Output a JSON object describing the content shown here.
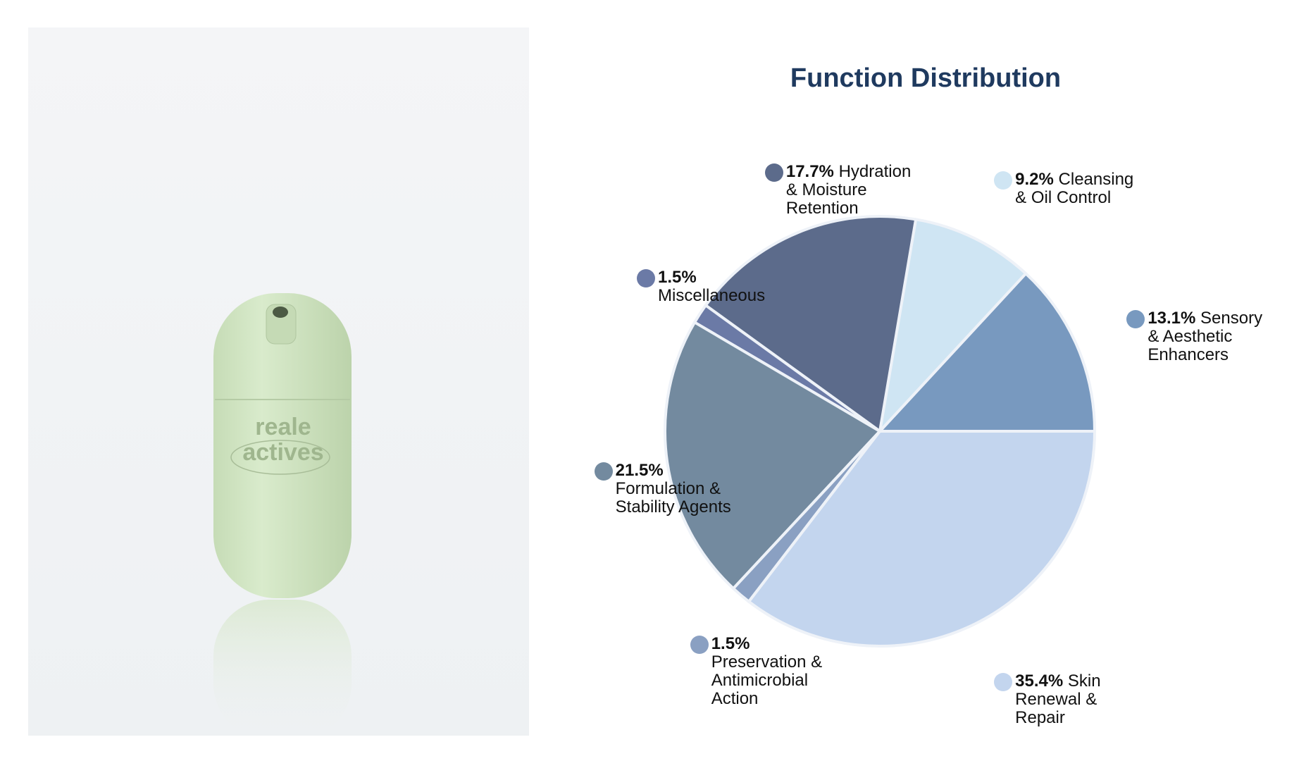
{
  "product_image": {
    "brand_line1": "reale",
    "brand_line2": "actives"
  },
  "chart_data": {
    "type": "pie",
    "title": "Function Distribution",
    "categories": [
      "Sensory & Aesthetic Enhancers",
      "Cleansing & Oil Control",
      "Hydration & Moisture Retention",
      "Miscellaneous",
      "Formulation & Stability Agents",
      "Preservation & Antimicrobial Action",
      "Skin Renewal & Repair"
    ],
    "values": [
      13.1,
      9.2,
      17.7,
      1.5,
      21.5,
      1.5,
      35.4
    ],
    "value_labels": [
      "13.1%",
      "9.2%",
      "17.7%",
      "1.5%",
      "21.5%",
      "1.5%",
      "35.4%"
    ],
    "colors": [
      "#7899bf",
      "#cfe5f3",
      "#5c6b8b",
      "#6b7aa6",
      "#738a9f",
      "#8aa0c2",
      "#c3d5ee"
    ],
    "start_angle": 0,
    "direction": "counterclockwise"
  }
}
